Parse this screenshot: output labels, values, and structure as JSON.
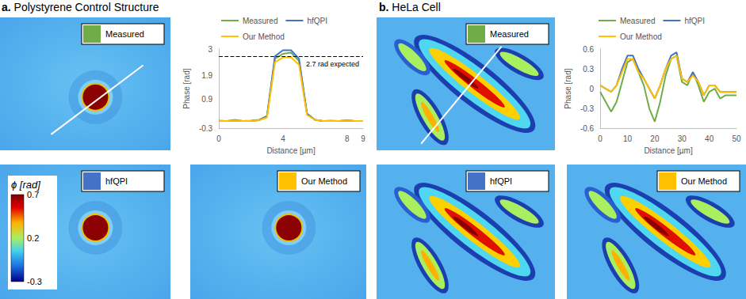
{
  "chart_data": [
    {
      "type": "line",
      "x": [
        0,
        0.5,
        1,
        1.5,
        2,
        2.5,
        3,
        3.5,
        4,
        4.5,
        5,
        5.5,
        6,
        6.5,
        7,
        7.5,
        8,
        8.5,
        9
      ],
      "series": [
        {
          "name": "Measured",
          "color": "#70ad47",
          "values": [
            0.02,
            0,
            0.05,
            0,
            0.02,
            0.05,
            0.2,
            2.6,
            2.8,
            2.85,
            2.5,
            0.3,
            0.05,
            0,
            0.02,
            0,
            0.03,
            0,
            0
          ]
        },
        {
          "name": "hfQPI",
          "color": "#4472c4",
          "values": [
            0,
            0,
            0.02,
            0,
            0,
            0.03,
            0.2,
            2.7,
            2.95,
            2.95,
            2.6,
            0.3,
            0.05,
            0,
            0,
            0,
            0.02,
            0,
            0
          ]
        },
        {
          "name": "Our Method",
          "color": "#ffc000",
          "values": [
            0,
            0,
            0.02,
            0,
            0,
            0.03,
            0.15,
            2.45,
            2.65,
            2.65,
            2.35,
            0.25,
            0.05,
            0,
            0,
            0,
            0.02,
            0,
            0
          ]
        }
      ],
      "xlabel": "Distance [µm]",
      "ylabel": "Phase [rad]",
      "xlim": [
        0,
        9
      ],
      "xticks": [
        0,
        4,
        8
      ],
      "ylim": [
        -0.3,
        3
      ],
      "yticks": [
        -0.3,
        0.9,
        1.9,
        3
      ],
      "legend": "top",
      "reference": {
        "value": 2.7,
        "label": "2.7 rad expected"
      }
    },
    {
      "type": "line",
      "x": [
        0,
        2,
        4,
        6,
        8,
        10,
        12,
        14,
        16,
        18,
        20,
        22,
        24,
        26,
        28,
        30,
        32,
        34,
        36,
        38,
        40,
        42,
        44,
        46,
        48,
        50
      ],
      "series": [
        {
          "name": "Measured",
          "color": "#70ad47",
          "values": [
            -0.05,
            -0.2,
            -0.35,
            -0.2,
            0.1,
            0.4,
            0.45,
            0.25,
            0.05,
            -0.3,
            -0.5,
            -0.2,
            0.2,
            0.45,
            0.5,
            0.1,
            0.05,
            0.25,
            0.05,
            -0.2,
            -0.05,
            0,
            -0.15,
            -0.1,
            -0.1,
            -0.1
          ]
        },
        {
          "name": "hfQPI",
          "color": "#4472c4",
          "values": [
            0.05,
            0,
            -0.05,
            0.05,
            0.3,
            0.5,
            0.5,
            0.3,
            0.15,
            0,
            -0.15,
            0.05,
            0.3,
            0.5,
            0.55,
            0.15,
            0.1,
            0.25,
            0.1,
            -0.1,
            0.05,
            0.05,
            -0.05,
            -0.05,
            -0.05,
            -0.05
          ]
        },
        {
          "name": "Our Method",
          "color": "#ffc000",
          "values": [
            0.05,
            0,
            -0.05,
            0.05,
            0.25,
            0.45,
            0.45,
            0.25,
            0.15,
            0,
            -0.15,
            0.05,
            0.3,
            0.45,
            0.5,
            0.15,
            0.1,
            0.2,
            0.1,
            -0.1,
            0.05,
            0.05,
            -0.05,
            -0.05,
            -0.05,
            -0.05
          ]
        }
      ],
      "xlabel": "Distance [µm]",
      "ylabel": "Phase [rad]",
      "xlim": [
        0,
        50
      ],
      "xticks": [
        0,
        10,
        20,
        30,
        40,
        50
      ],
      "ylim": [
        -0.6,
        0.6
      ],
      "yticks": [
        -0.6,
        -0.3,
        0,
        0.3,
        0.6
      ],
      "legend": "top"
    }
  ],
  "panels": [
    {
      "label": "a.",
      "title": "Polystyrene Control Structure",
      "images": [
        {
          "name": "Measured",
          "color": "#70ad47"
        },
        {
          "name": "hfQPI",
          "color": "#4472c4"
        },
        {
          "name": "Our Method",
          "color": "#ffc000"
        }
      ]
    },
    {
      "label": "b.",
      "title": "HeLa Cell",
      "images": [
        {
          "name": "Measured",
          "color": "#70ad47"
        },
        {
          "name": "hfQPI",
          "color": "#4472c4"
        },
        {
          "name": "Our Method",
          "color": "#ffc000"
        }
      ]
    }
  ],
  "colorbar": {
    "title": "ϕ [rad]",
    "range": [
      -0.3,
      0.7
    ],
    "ticks": [
      0.7,
      0.2,
      -0.3
    ]
  }
}
